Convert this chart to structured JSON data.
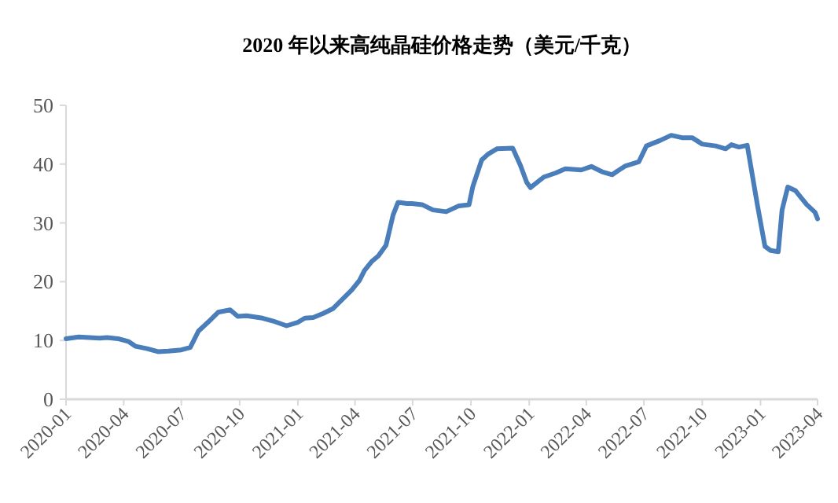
{
  "chart_data": {
    "type": "line",
    "title": "2020 年以来高纯晶硅价格走势（美元/千克）",
    "x": [
      "2020-01-01",
      "2020-01-21",
      "2020-02-23",
      "2020-03-06",
      "2020-03-23",
      "2020-04-09",
      "2020-04-20",
      "2020-05-08",
      "2020-05-25",
      "2020-06-10",
      "2020-07-01",
      "2020-07-15",
      "2020-07-28",
      "2020-08-12",
      "2020-08-28",
      "2020-09-16",
      "2020-09-28",
      "2020-10-12",
      "2020-11-06",
      "2020-11-23",
      "2020-12-14",
      "2021-01-01",
      "2021-01-12",
      "2021-01-25",
      "2021-02-10",
      "2021-02-25",
      "2021-03-12",
      "2021-03-27",
      "2021-04-08",
      "2021-04-16",
      "2021-04-28",
      "2021-05-08",
      "2021-05-20",
      "2021-05-31",
      "2021-06-08",
      "2021-06-22",
      "2021-06-30",
      "2021-07-16",
      "2021-08-02",
      "2021-08-23",
      "2021-09-12",
      "2021-09-28",
      "2021-10-04",
      "2021-10-18",
      "2021-10-28",
      "2021-11-11",
      "2021-12-06",
      "2021-12-18",
      "2021-12-28",
      "2022-01-03",
      "2022-01-24",
      "2022-02-12",
      "2022-02-27",
      "2022-03-24",
      "2022-04-09",
      "2022-04-26",
      "2022-05-12",
      "2022-05-20",
      "2022-06-02",
      "2022-06-23",
      "2022-07-05",
      "2022-07-26",
      "2022-08-13",
      "2022-08-30",
      "2022-09-15",
      "2022-10-01",
      "2022-10-22",
      "2022-11-07",
      "2022-11-16",
      "2022-11-28",
      "2022-12-11",
      "2022-12-27",
      "2023-01-08",
      "2023-01-17",
      "2023-01-29",
      "2023-02-04",
      "2023-02-13",
      "2023-02-25",
      "2023-03-15",
      "2023-03-28",
      "2023-04-01"
    ],
    "series": [
      {
        "color": "#4a7ebb",
        "values": [
          10.3,
          10.6,
          10.4,
          10.5,
          10.3,
          9.8,
          9.0,
          8.6,
          8.1,
          8.2,
          8.4,
          8.8,
          11.6,
          13.1,
          14.8,
          15.2,
          14.1,
          14.2,
          13.8,
          13.3,
          12.5,
          13.1,
          13.8,
          13.9,
          14.6,
          15.4,
          17.0,
          18.6,
          20.2,
          21.9,
          23.5,
          24.4,
          26.2,
          31.3,
          33.5,
          33.3,
          33.3,
          33.1,
          32.2,
          31.9,
          32.9,
          33.1,
          36.2,
          40.7,
          41.7,
          42.6,
          42.7,
          39.8,
          36.9,
          36.0,
          37.8,
          38.5,
          39.2,
          39.0,
          39.6,
          38.7,
          38.2,
          38.8,
          39.7,
          40.4,
          43.1,
          44.0,
          44.9,
          44.5,
          44.5,
          43.4,
          43.1,
          42.6,
          43.3,
          42.9,
          43.2,
          33.1,
          26.0,
          25.3,
          25.1,
          32.2,
          36.1,
          35.5,
          33.1,
          31.8,
          30.7
        ]
      }
    ],
    "xlim": [
      "2020-01",
      "2023-04"
    ],
    "xticks": [
      "2020-01",
      "2020-04",
      "2020-07",
      "2020-10",
      "2021-01",
      "2021-04",
      "2021-07",
      "2021-10",
      "2022-01",
      "2022-04",
      "2022-07",
      "2022-10",
      "2023-01",
      "2023-04"
    ],
    "ylim": [
      0,
      50
    ],
    "yticks": [
      0,
      10,
      20,
      30,
      40,
      50
    ],
    "grid": false,
    "marker": "none",
    "line_style": "solid"
  }
}
